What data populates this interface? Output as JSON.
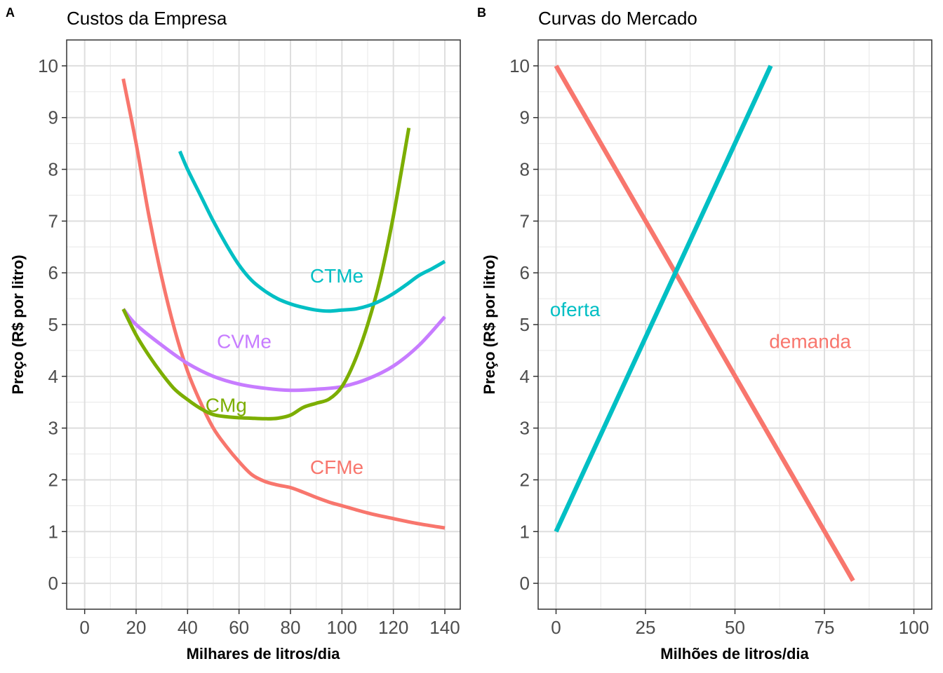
{
  "chart_data": [
    {
      "tag": "A",
      "type": "line",
      "title": "Custos da Empresa",
      "xlabel": "Milhares de litros/dia",
      "ylabel": "Preço (R$ por litro)",
      "xlim": [
        -7,
        146
      ],
      "ylim": [
        -0.5,
        10.5
      ],
      "xticks": [
        0,
        20,
        40,
        60,
        80,
        100,
        120,
        140
      ],
      "yticks": [
        0,
        1,
        2,
        3,
        4,
        5,
        6,
        7,
        8,
        9,
        10
      ],
      "grid": true,
      "series": [
        {
          "name": "CFMe",
          "color": "#F8766D",
          "x": [
            15,
            20,
            25,
            30,
            35,
            40,
            45,
            50,
            55,
            60,
            65,
            70,
            75,
            80,
            85,
            90,
            95,
            100,
            110,
            120,
            130,
            140
          ],
          "y": [
            9.75,
            8.5,
            7.1,
            5.9,
            4.9,
            4.1,
            3.5,
            3.0,
            2.65,
            2.35,
            2.1,
            1.97,
            1.9,
            1.85,
            1.76,
            1.66,
            1.57,
            1.5,
            1.36,
            1.25,
            1.15,
            1.07
          ]
        },
        {
          "name": "CVMe",
          "color": "#C77CFF",
          "x": [
            15,
            20,
            30,
            40,
            50,
            60,
            70,
            80,
            90,
            100,
            110,
            120,
            130,
            140
          ],
          "y": [
            5.3,
            5.0,
            4.6,
            4.25,
            4.0,
            3.85,
            3.77,
            3.73,
            3.75,
            3.8,
            3.95,
            4.2,
            4.6,
            5.15
          ]
        },
        {
          "name": "CMg",
          "color": "#7CAE00",
          "x": [
            15,
            20,
            25,
            30,
            35,
            40,
            45,
            50,
            55,
            60,
            65,
            70,
            75,
            80,
            85,
            90,
            95,
            100,
            105,
            110,
            115,
            120,
            126
          ],
          "y": [
            5.3,
            4.8,
            4.4,
            4.05,
            3.75,
            3.55,
            3.38,
            3.26,
            3.22,
            3.2,
            3.19,
            3.18,
            3.19,
            3.25,
            3.4,
            3.48,
            3.56,
            3.8,
            4.3,
            5.0,
            5.9,
            7.1,
            8.8
          ]
        },
        {
          "name": "CTMe",
          "color": "#00BFC4",
          "x": [
            37,
            40,
            45,
            50,
            55,
            60,
            65,
            70,
            75,
            80,
            85,
            90,
            95,
            100,
            105,
            110,
            115,
            120,
            125,
            130,
            135,
            140
          ],
          "y": [
            8.35,
            8.0,
            7.5,
            7.0,
            6.55,
            6.15,
            5.85,
            5.65,
            5.5,
            5.4,
            5.33,
            5.28,
            5.26,
            5.28,
            5.3,
            5.36,
            5.46,
            5.6,
            5.77,
            5.95,
            6.08,
            6.22
          ]
        }
      ],
      "annotations": [
        {
          "text": "CTMe",
          "x": 98,
          "y": 5.95,
          "color": "#00BFC4"
        },
        {
          "text": "CVMe",
          "x": 62,
          "y": 4.68,
          "color": "#C77CFF"
        },
        {
          "text": "CMg",
          "x": 55,
          "y": 3.45,
          "color": "#7CAE00"
        },
        {
          "text": "CFMe",
          "x": 98,
          "y": 2.25,
          "color": "#F8766D"
        }
      ]
    },
    {
      "tag": "B",
      "type": "line",
      "title": "Curvas do Mercado",
      "xlabel": "Milhões de litros/dia",
      "ylabel": "Preço (R$ por litro)",
      "xlim": [
        -5,
        105
      ],
      "ylim": [
        -0.5,
        10.5
      ],
      "xticks": [
        0,
        25,
        50,
        75,
        100
      ],
      "yticks": [
        0,
        1,
        2,
        3,
        4,
        5,
        6,
        7,
        8,
        9,
        10
      ],
      "grid": true,
      "series": [
        {
          "name": "demanda",
          "color": "#F8766D",
          "x": [
            0,
            83
          ],
          "y": [
            10,
            0.05
          ]
        },
        {
          "name": "oferta",
          "color": "#00BFC4",
          "x": [
            0,
            60
          ],
          "y": [
            1,
            10
          ]
        }
      ],
      "annotations": [
        {
          "text": "oferta",
          "x": 5.3,
          "y": 5.3,
          "color": "#00BFC4"
        },
        {
          "text": "demanda",
          "x": 71,
          "y": 4.68,
          "color": "#F8766D"
        }
      ]
    }
  ]
}
